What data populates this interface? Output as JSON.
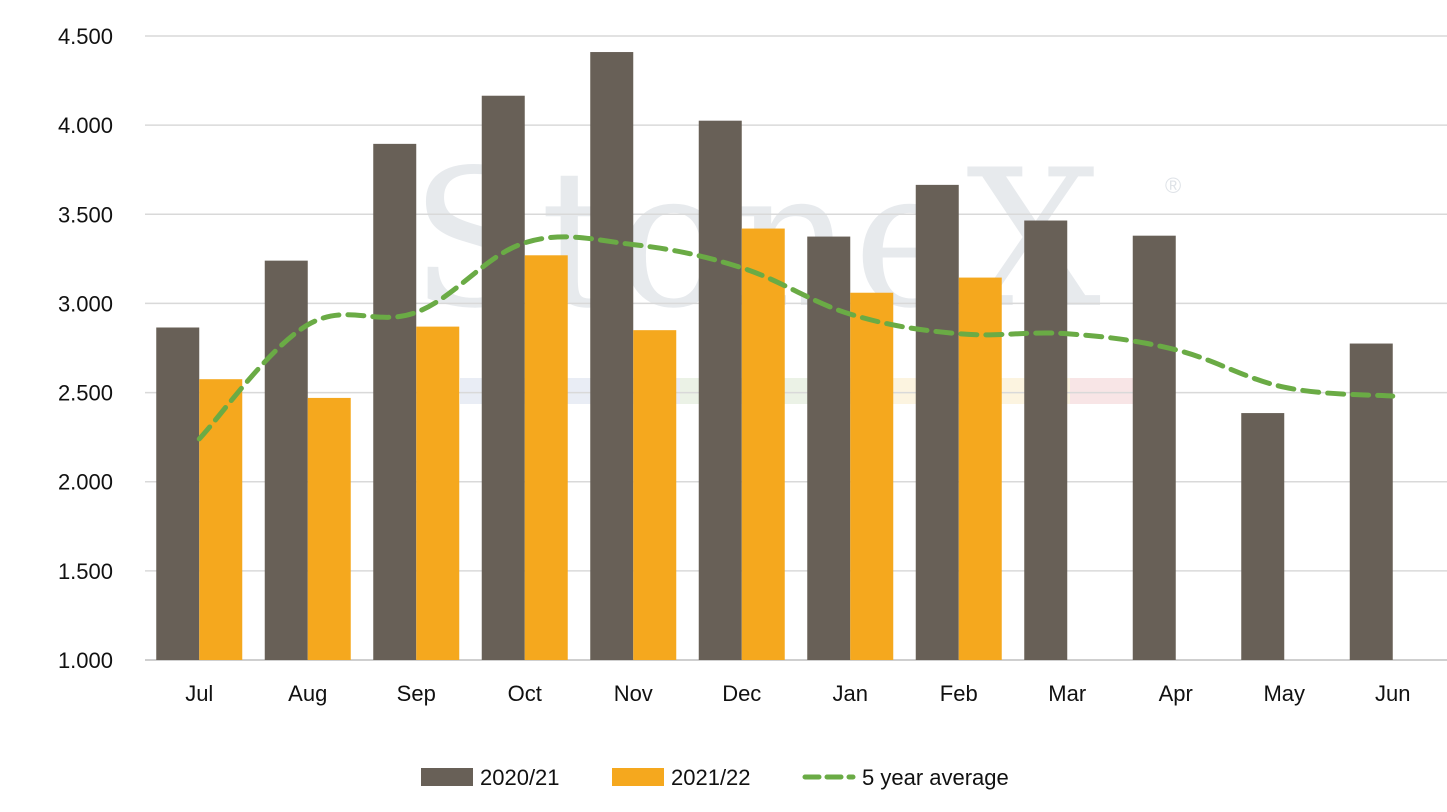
{
  "chart_data": {
    "type": "bar",
    "title": "",
    "xlabel": "",
    "ylabel": "",
    "categories": [
      "Jul",
      "Aug",
      "Sep",
      "Oct",
      "Nov",
      "Dec",
      "Jan",
      "Feb",
      "Mar",
      "Apr",
      "May",
      "Jun"
    ],
    "ylim": [
      1000,
      4500
    ],
    "yticks": [
      1000,
      1500,
      2000,
      2500,
      3000,
      3500,
      4000,
      4500
    ],
    "ytick_labels": [
      "1.000",
      "1.500",
      "2.000",
      "2.500",
      "3.000",
      "3.500",
      "4.000",
      "4.500"
    ],
    "grid": "horizontal",
    "legend": "bottom",
    "series": [
      {
        "name": "2020/21",
        "type": "bar",
        "color": "#686057",
        "values": [
          2865,
          3240,
          3895,
          4165,
          4410,
          4025,
          3375,
          3665,
          3465,
          3380,
          2385,
          2775
        ]
      },
      {
        "name": "2021/22",
        "type": "bar",
        "color": "#f5a81e",
        "values": [
          2575,
          2470,
          2870,
          3270,
          2850,
          3420,
          3060,
          3145,
          null,
          null,
          null,
          null
        ]
      },
      {
        "name": "5 year average",
        "type": "line",
        "style": "dashed",
        "color": "#6aab45",
        "values": [
          2240,
          2880,
          2950,
          3340,
          3330,
          3200,
          2940,
          2830,
          2830,
          2740,
          2530,
          2480
        ]
      }
    ],
    "watermark": "StoneX"
  }
}
